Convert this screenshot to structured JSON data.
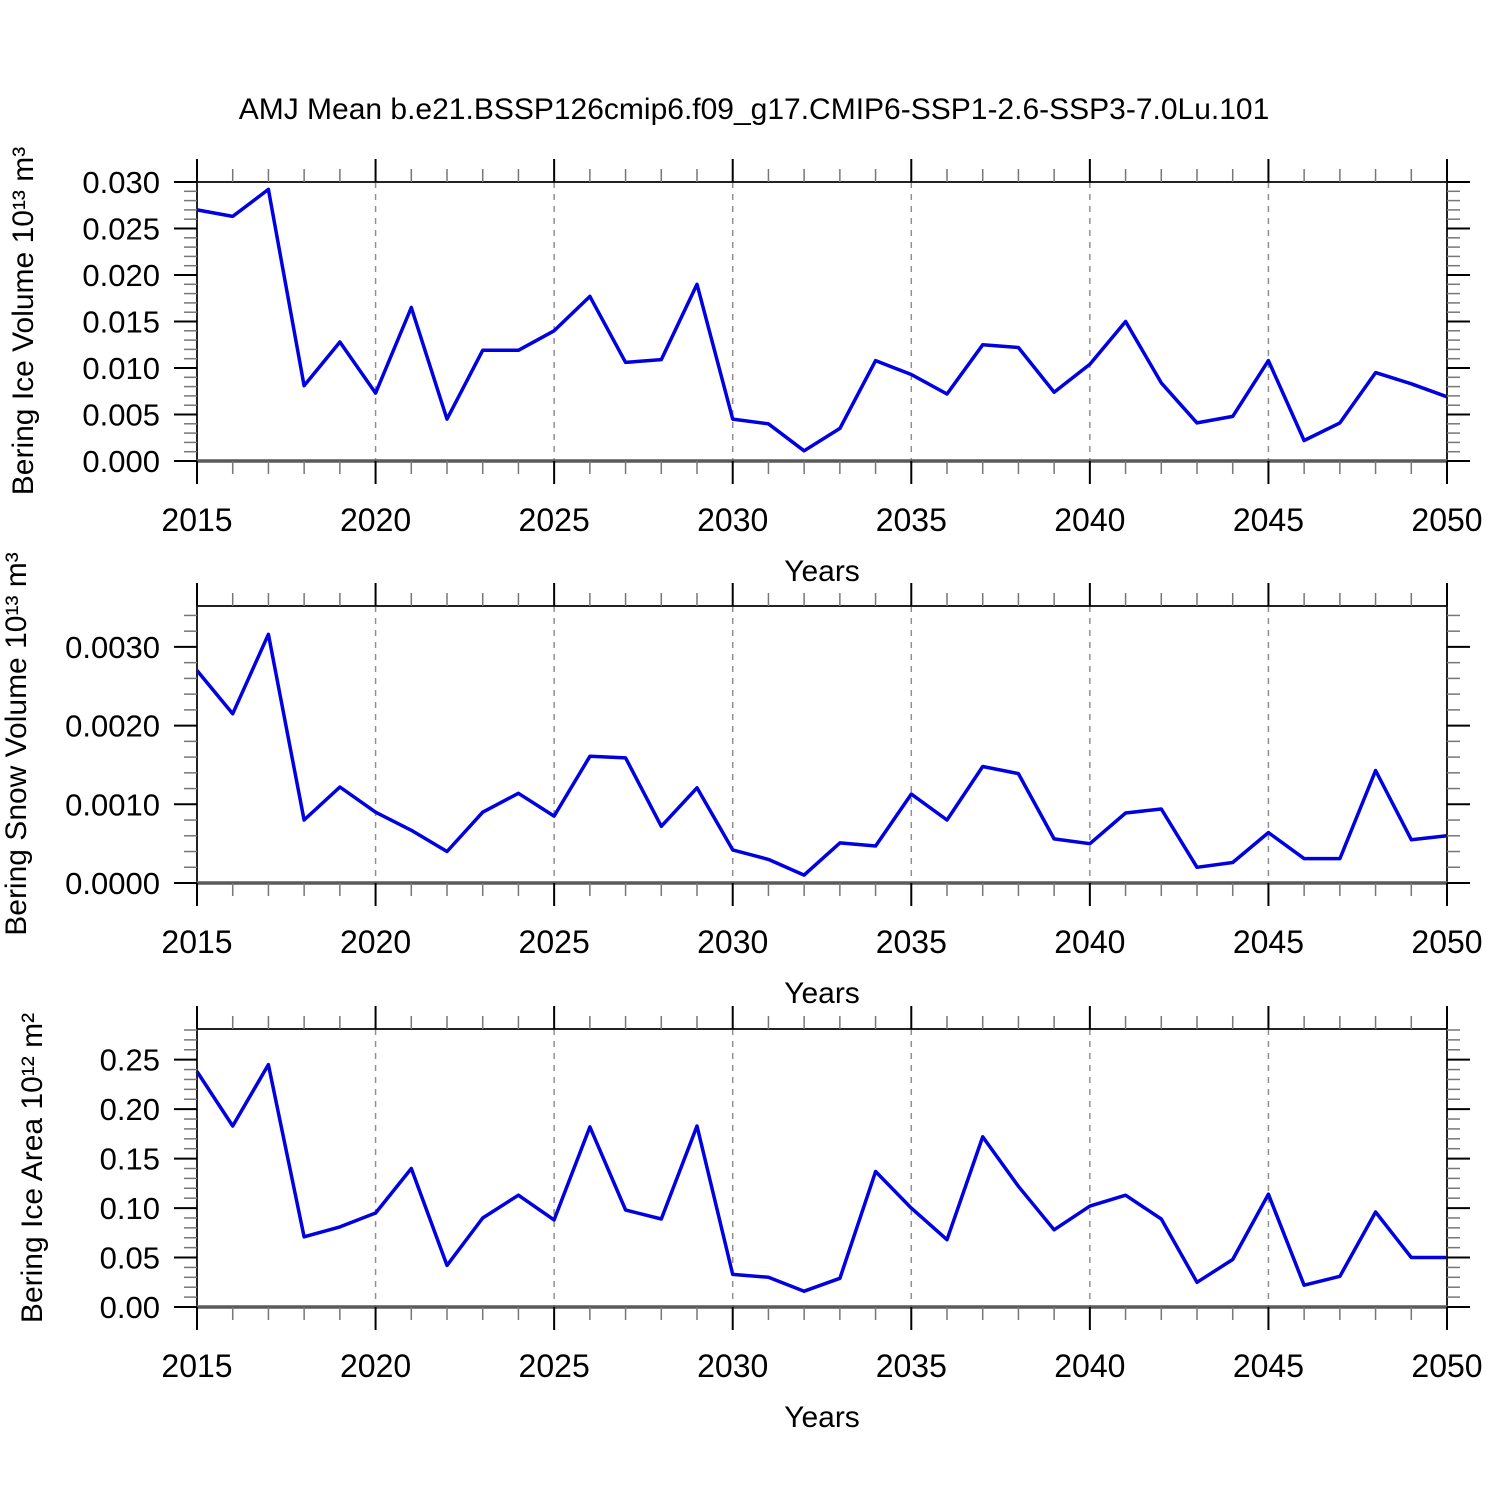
{
  "title": "AMJ Mean b.e21.BSSP126cmip6.f09_g17.CMIP6-SSP1-2.6-SSP3-7.0Lu.101",
  "style": {
    "line_color": "#0000e0",
    "grid_color": "#909090",
    "axis_color": "#222222",
    "bottom_axis_color": "#5a5a5a",
    "major_tick_color": "#000000",
    "minor_tick_color": "#777777",
    "text_color": "#000000",
    "background": "#ffffff"
  },
  "x_axis": {
    "label": "Years",
    "range": [
      2015,
      2050
    ],
    "major_tick_labels": [
      "2015",
      "2020",
      "2025",
      "2030",
      "2035",
      "2040",
      "2045",
      "2050"
    ],
    "major_step": 5,
    "minor_step": 1,
    "gridline_years": [
      2020,
      2025,
      2030,
      2035,
      2040,
      2045
    ]
  },
  "chart_data": [
    {
      "type": "line",
      "name": "bering-ice-volume",
      "ylabel": "Bering Ice Volume 10¹³ m³",
      "xlabel": "Years",
      "legend": "none",
      "grid": "vertical-dashed",
      "ylim": [
        0,
        0.03
      ],
      "y_tick_values": [
        0.0,
        0.005,
        0.01,
        0.015,
        0.02,
        0.025,
        0.03
      ],
      "y_tick_labels": [
        "0.000",
        "0.005",
        "0.010",
        "0.015",
        "0.020",
        "0.025",
        "0.030"
      ],
      "y_minor_step": 0.001,
      "x": [
        2015,
        2016,
        2017,
        2018,
        2019,
        2020,
        2021,
        2022,
        2023,
        2024,
        2025,
        2026,
        2027,
        2028,
        2029,
        2030,
        2031,
        2032,
        2033,
        2034,
        2035,
        2036,
        2037,
        2038,
        2039,
        2040,
        2041,
        2042,
        2043,
        2044,
        2045,
        2046,
        2047,
        2048,
        2049,
        2050
      ],
      "y": [
        0.027,
        0.0263,
        0.0292,
        0.0081,
        0.0128,
        0.0073,
        0.0165,
        0.0045,
        0.0119,
        0.0119,
        0.014,
        0.0177,
        0.0106,
        0.0109,
        0.019,
        0.0045,
        0.004,
        0.0011,
        0.0035,
        0.0108,
        0.0093,
        0.0072,
        0.0125,
        0.0122,
        0.0074,
        0.0104,
        0.015,
        0.0084,
        0.0041,
        0.0048,
        0.0108,
        0.0022,
        0.0041,
        0.0095,
        0.0083,
        0.0069
      ]
    },
    {
      "type": "line",
      "name": "bering-snow-volume",
      "ylabel": "Bering Snow Volume 10¹³ m³",
      "xlabel": "Years",
      "legend": "none",
      "grid": "vertical-dashed",
      "ylim": [
        0,
        0.00352
      ],
      "y_tick_values": [
        0.0,
        0.001,
        0.002,
        0.003
      ],
      "y_tick_labels": [
        "0.0000",
        "0.0010",
        "0.0020",
        "0.0030"
      ],
      "y_minor_step": 0.0002,
      "x": [
        2015,
        2016,
        2017,
        2018,
        2019,
        2020,
        2021,
        2022,
        2023,
        2024,
        2025,
        2026,
        2027,
        2028,
        2029,
        2030,
        2031,
        2032,
        2033,
        2034,
        2035,
        2036,
        2037,
        2038,
        2039,
        2040,
        2041,
        2042,
        2043,
        2044,
        2045,
        2046,
        2047,
        2048,
        2049,
        2050
      ],
      "y": [
        0.0027,
        0.00215,
        0.00316,
        0.0008,
        0.00122,
        0.0009,
        0.00067,
        0.0004,
        0.0009,
        0.00114,
        0.00085,
        0.00161,
        0.00159,
        0.00072,
        0.00121,
        0.00042,
        0.0003,
        0.0001,
        0.00051,
        0.00047,
        0.00113,
        0.0008,
        0.00148,
        0.00139,
        0.00056,
        0.0005,
        0.00089,
        0.00094,
        0.0002,
        0.00026,
        0.00064,
        0.00031,
        0.00031,
        0.00143,
        0.00055,
        0.0006
      ]
    },
    {
      "type": "line",
      "name": "bering-ice-area",
      "ylabel": "Bering Ice Area 10¹² m²",
      "xlabel": "Years",
      "legend": "none",
      "grid": "vertical-dashed",
      "ylim": [
        0,
        0.281
      ],
      "y_tick_values": [
        0.0,
        0.05,
        0.1,
        0.15,
        0.2,
        0.25
      ],
      "y_tick_labels": [
        "0.00",
        "0.05",
        "0.10",
        "0.15",
        "0.20",
        "0.25"
      ],
      "y_minor_step": 0.01,
      "x": [
        2015,
        2016,
        2017,
        2018,
        2019,
        2020,
        2021,
        2022,
        2023,
        2024,
        2025,
        2026,
        2027,
        2028,
        2029,
        2030,
        2031,
        2032,
        2033,
        2034,
        2035,
        2036,
        2037,
        2038,
        2039,
        2040,
        2041,
        2042,
        2043,
        2044,
        2045,
        2046,
        2047,
        2048,
        2049,
        2050
      ],
      "y": [
        0.238,
        0.183,
        0.245,
        0.071,
        0.081,
        0.095,
        0.14,
        0.042,
        0.09,
        0.113,
        0.088,
        0.182,
        0.098,
        0.089,
        0.183,
        0.033,
        0.03,
        0.016,
        0.029,
        0.137,
        0.1,
        0.068,
        0.172,
        0.122,
        0.078,
        0.102,
        0.113,
        0.089,
        0.025,
        0.048,
        0.114,
        0.022,
        0.031,
        0.096,
        0.05,
        0.05
      ]
    }
  ]
}
